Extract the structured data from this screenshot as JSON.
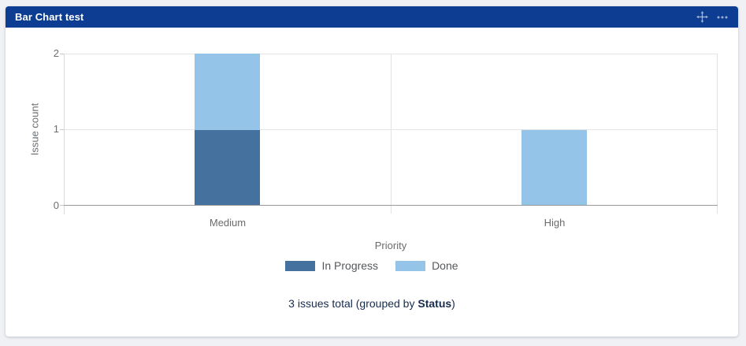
{
  "gadget": {
    "title": "Bar Chart test",
    "header_bg": "#0C3D92",
    "icons": [
      {
        "name": "move-icon",
        "glyph": "✥"
      },
      {
        "name": "more-menu-icon",
        "glyph": "⋯"
      }
    ]
  },
  "chart_data": {
    "type": "bar",
    "stacked": true,
    "categories": [
      "Medium",
      "High"
    ],
    "series": [
      {
        "name": "In Progress",
        "color": "#45719F",
        "values": [
          1,
          0
        ]
      },
      {
        "name": "Done",
        "color": "#94C5E8",
        "values": [
          1,
          1
        ]
      }
    ],
    "totals": [
      2,
      1
    ],
    "title": "",
    "xlabel": "Priority",
    "ylabel": "Issue count",
    "ylim": [
      0,
      2
    ],
    "yticks": [
      0,
      1,
      2
    ],
    "grid": true,
    "legend_position": "bottom"
  },
  "footer": {
    "prefix": "3 issues total (grouped by ",
    "bold": "Status",
    "suffix": ")"
  }
}
